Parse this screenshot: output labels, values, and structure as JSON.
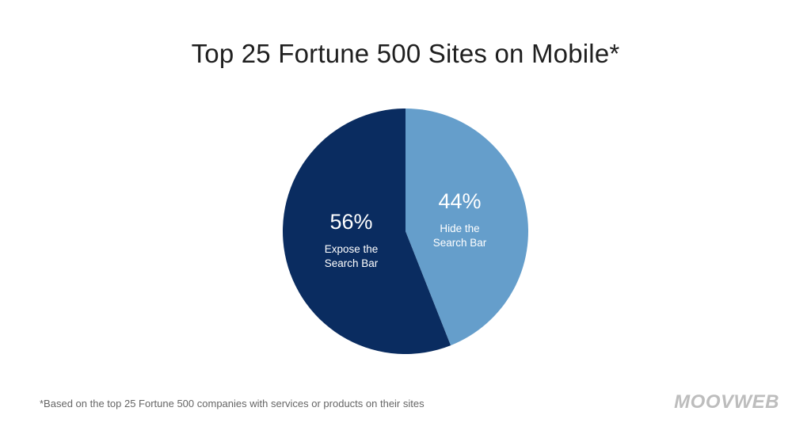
{
  "chart_data": {
    "type": "pie",
    "title": "Top 25 Fortune 500 Sites on Mobile*",
    "slices": [
      {
        "percent_label": "44%",
        "value": 44,
        "label_lines": [
          "Hide the",
          "Search Bar"
        ],
        "color": "#659ecb"
      },
      {
        "percent_label": "56%",
        "value": 56,
        "label_lines": [
          "Expose the",
          "Search Bar"
        ],
        "color": "#0a2c60"
      }
    ],
    "footnote": "*Based on the top 25 Fortune 500 companies with services or products on their sites",
    "brand": "MOOVWEB"
  }
}
